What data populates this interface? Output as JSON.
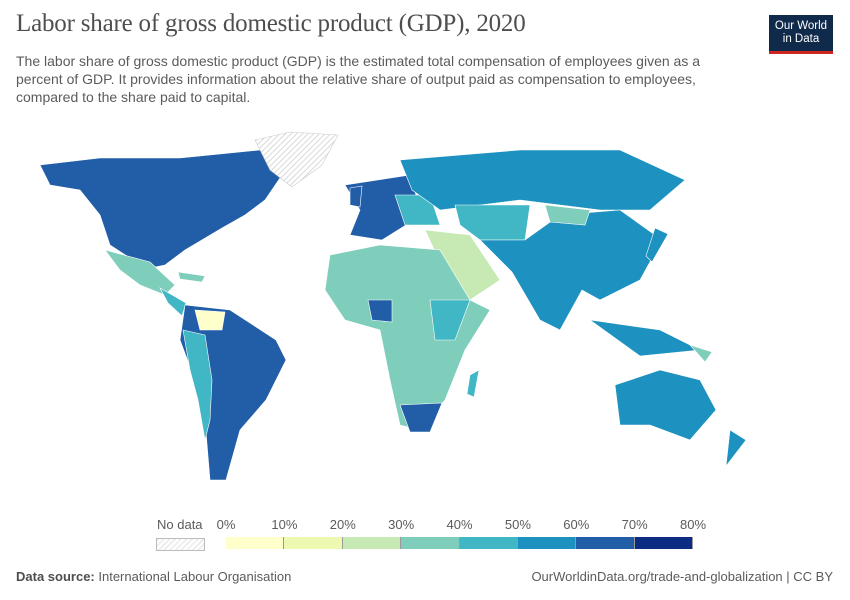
{
  "header": {
    "title": "Labor share of gross domestic product (GDP), 2020",
    "subtitle": "The labor share of gross domestic product (GDP) is the estimated total compensation of employees given as a percent of GDP. It provides information about the relative share of output paid as compensation to employees, compared to the share paid to capital.",
    "logo_text": "Our World in Data"
  },
  "legend": {
    "no_data_label": "No data",
    "ticks": [
      "0%",
      "10%",
      "20%",
      "30%",
      "40%",
      "50%",
      "60%",
      "70%",
      "80%"
    ],
    "colors": [
      "#ffffcc",
      "#edf8b1",
      "#c7e9b4",
      "#7fcdbb",
      "#41b6c4",
      "#1d91c0",
      "#225ea8",
      "#0c2c84"
    ]
  },
  "footer": {
    "source_label": "Data source:",
    "source_value": "International Labour Organisation",
    "url": "OurWorldinData.org/trade-and-globalization | CC BY"
  }
}
